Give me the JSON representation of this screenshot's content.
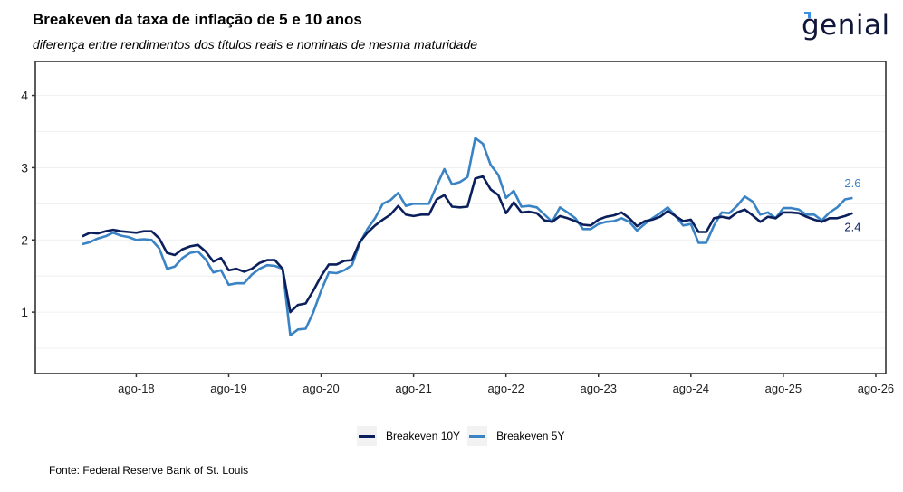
{
  "header": {
    "title": "Breakeven da taxa de inflação de 5 e 10 anos",
    "subtitle": "diferença entre rendimentos dos títulos reais e nominais de mesma maturidade",
    "logo_text": "genial"
  },
  "footer": {
    "source": "Fonte: Federal Reserve Bank of St. Louis"
  },
  "chart_data": {
    "type": "line",
    "title": "Breakeven da taxa de inflação de 5 e 10 anos",
    "subtitle": "diferença entre rendimentos dos títulos reais e nominais de mesma maturidade",
    "xlabel": "",
    "ylabel": "",
    "x_start": "2018-01",
    "x_frequency": "monthly",
    "x_ticks": [
      {
        "label": "ago-18",
        "month_index": 7
      },
      {
        "label": "ago-19",
        "month_index": 19
      },
      {
        "label": "ago-20",
        "month_index": 31
      },
      {
        "label": "ago-21",
        "month_index": 43
      },
      {
        "label": "ago-22",
        "month_index": 55
      },
      {
        "label": "ago-23",
        "month_index": 67
      },
      {
        "label": "ago-24",
        "month_index": 79
      },
      {
        "label": "ago-25",
        "month_index": 91
      },
      {
        "label": "ago-26",
        "month_index": 103
      }
    ],
    "x_range_months": [
      -6.1,
      104.3
    ],
    "y_ticks": [
      1,
      2,
      3,
      4
    ],
    "ylim": [
      0.15,
      4.47
    ],
    "grid": true,
    "legend_position": "bottom",
    "series": [
      {
        "name": "Breakeven 10Y",
        "color": "#0b1f5c",
        "end_label": "2.4",
        "values": [
          2.05,
          2.1,
          2.09,
          2.12,
          2.14,
          2.12,
          2.11,
          2.1,
          2.12,
          2.12,
          2.02,
          1.82,
          1.79,
          1.87,
          1.91,
          1.93,
          1.84,
          1.7,
          1.75,
          1.58,
          1.6,
          1.56,
          1.6,
          1.68,
          1.72,
          1.72,
          1.6,
          1.0,
          1.1,
          1.12,
          1.3,
          1.5,
          1.66,
          1.66,
          1.71,
          1.72,
          1.97,
          2.1,
          2.2,
          2.28,
          2.35,
          2.47,
          2.35,
          2.33,
          2.35,
          2.35,
          2.56,
          2.62,
          2.46,
          2.45,
          2.46,
          2.85,
          2.88,
          2.7,
          2.62,
          2.37,
          2.52,
          2.38,
          2.39,
          2.37,
          2.27,
          2.25,
          2.33,
          2.3,
          2.26,
          2.21,
          2.2,
          2.28,
          2.32,
          2.34,
          2.38,
          2.3,
          2.19,
          2.26,
          2.28,
          2.32,
          2.4,
          2.33,
          2.26,
          2.28,
          2.11,
          2.11,
          2.3,
          2.32,
          2.3,
          2.38,
          2.42,
          2.34,
          2.25,
          2.32,
          2.3,
          2.38,
          2.38,
          2.37,
          2.32,
          2.28,
          2.25,
          2.3,
          2.3,
          2.33,
          2.37
        ]
      },
      {
        "name": "Breakeven 5Y",
        "color": "#3a83c4",
        "end_label": "2.6",
        "values": [
          1.94,
          1.97,
          2.02,
          2.05,
          2.1,
          2.06,
          2.04,
          2.0,
          2.01,
          2.0,
          1.88,
          1.6,
          1.63,
          1.75,
          1.82,
          1.84,
          1.73,
          1.55,
          1.58,
          1.38,
          1.4,
          1.4,
          1.52,
          1.6,
          1.65,
          1.64,
          1.6,
          0.68,
          0.76,
          0.77,
          1.0,
          1.3,
          1.55,
          1.54,
          1.58,
          1.65,
          1.95,
          2.15,
          2.3,
          2.5,
          2.55,
          2.65,
          2.47,
          2.5,
          2.5,
          2.5,
          2.75,
          2.98,
          2.77,
          2.8,
          2.87,
          3.41,
          3.33,
          3.04,
          2.9,
          2.58,
          2.68,
          2.46,
          2.47,
          2.45,
          2.35,
          2.25,
          2.45,
          2.38,
          2.3,
          2.15,
          2.15,
          2.22,
          2.25,
          2.26,
          2.3,
          2.25,
          2.13,
          2.22,
          2.3,
          2.37,
          2.45,
          2.33,
          2.2,
          2.22,
          1.96,
          1.96,
          2.2,
          2.38,
          2.37,
          2.47,
          2.6,
          2.53,
          2.35,
          2.38,
          2.3,
          2.44,
          2.44,
          2.42,
          2.35,
          2.35,
          2.27,
          2.38,
          2.45,
          2.56,
          2.58
        ]
      }
    ]
  }
}
